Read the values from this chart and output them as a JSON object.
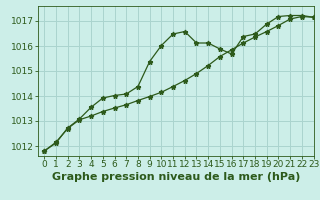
{
  "title": "Graphe pression niveau de la mer (hPa)",
  "bg_color": "#cceee8",
  "grid_color": "#aad4ce",
  "line_color": "#2d5a1b",
  "xlim": [
    -0.5,
    23
  ],
  "ylim": [
    1011.6,
    1017.6
  ],
  "yticks": [
    1012,
    1013,
    1014,
    1015,
    1016,
    1017
  ],
  "xticks": [
    0,
    1,
    2,
    3,
    4,
    5,
    6,
    7,
    8,
    9,
    10,
    11,
    12,
    13,
    14,
    15,
    16,
    17,
    18,
    19,
    20,
    21,
    22,
    23
  ],
  "series1_x": [
    0,
    1,
    2,
    3,
    4,
    5,
    6,
    7,
    8,
    9,
    10,
    11,
    12,
    13,
    14,
    15,
    16,
    17,
    18,
    19,
    20,
    21,
    22,
    23
  ],
  "series1_y": [
    1011.8,
    1012.15,
    1012.7,
    1013.05,
    1013.2,
    1013.38,
    1013.52,
    1013.65,
    1013.82,
    1013.98,
    1014.15,
    1014.38,
    1014.62,
    1014.9,
    1015.22,
    1015.58,
    1015.85,
    1016.12,
    1016.36,
    1016.58,
    1016.82,
    1017.08,
    1017.18,
    1017.15
  ],
  "series2_x": [
    0,
    1,
    2,
    3,
    4,
    5,
    6,
    7,
    8,
    9,
    10,
    11,
    12,
    13,
    14,
    15,
    16,
    17,
    18,
    19,
    20,
    21,
    22,
    23
  ],
  "series2_y": [
    1011.8,
    1012.12,
    1012.72,
    1013.08,
    1013.55,
    1013.92,
    1014.02,
    1014.08,
    1014.38,
    1015.38,
    1016.02,
    1016.48,
    1016.58,
    1016.12,
    1016.12,
    1015.88,
    1015.68,
    1016.38,
    1016.48,
    1016.88,
    1017.18,
    1017.22,
    1017.22,
    1017.15
  ],
  "title_fontsize": 8,
  "tick_fontsize": 6.5
}
